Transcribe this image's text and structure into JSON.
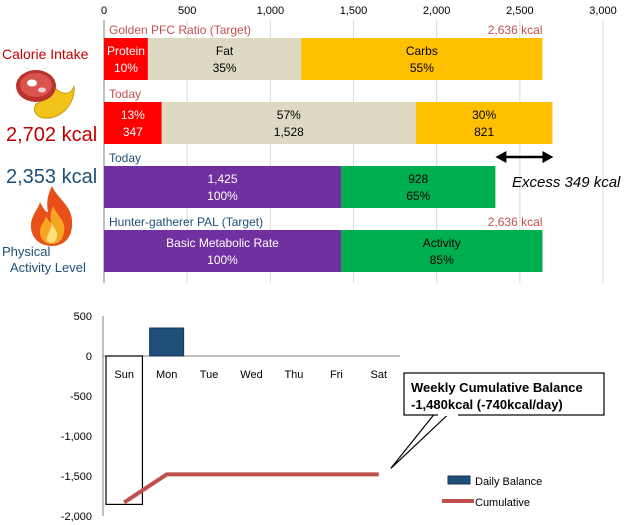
{
  "chart_data": [
    {
      "type": "bar",
      "orientation": "horizontal",
      "stacked": true,
      "xlim": [
        0,
        3000
      ],
      "xticks": [
        "0",
        "500",
        "1,000",
        "1,500",
        "2,000",
        "2,500",
        "3,000"
      ],
      "xtick_values": [
        0,
        500,
        1000,
        1500,
        2000,
        2500,
        3000
      ],
      "grid": true,
      "rows": [
        {
          "caption": "Golden PFC Ratio (Target)",
          "total_label": "2,636 kcal",
          "segments": [
            {
              "name": "Protein",
              "value": 264,
              "lines": [
                "Protein",
                "10%"
              ],
              "color": "#ff0000",
              "text_color": "#ffffff"
            },
            {
              "name": "Fat",
              "value": 922,
              "lines": [
                "Fat",
                "35%"
              ],
              "color": "#ddd9c3",
              "text_color": "#000000"
            },
            {
              "name": "Carbs",
              "value": 1450,
              "lines": [
                "Carbs",
                "55%"
              ],
              "color": "#ffc000",
              "text_color": "#000000"
            }
          ]
        },
        {
          "caption": "Today",
          "total_label": "",
          "segments": [
            {
              "name": "Protein",
              "value": 347,
              "lines": [
                "13%",
                "347"
              ],
              "color": "#ff0000",
              "text_color": "#ffffff"
            },
            {
              "name": "Fat",
              "value": 1528,
              "lines": [
                "57%",
                "1,528"
              ],
              "color": "#ddd9c3",
              "text_color": "#000000"
            },
            {
              "name": "Carbs",
              "value": 821,
              "lines": [
                "30%",
                "821"
              ],
              "color": "#ffc000",
              "text_color": "#000000"
            }
          ]
        },
        {
          "caption": "Today",
          "total_label": "",
          "segments": [
            {
              "name": "Basic Metabolic Rate",
              "value": 1425,
              "lines": [
                "1,425",
                "100%"
              ],
              "color": "#7030a0",
              "text_color": "#ffffff"
            },
            {
              "name": "Activity",
              "value": 928,
              "lines": [
                "928",
                "65%"
              ],
              "color": "#00b050",
              "text_color": "#000000"
            }
          ]
        },
        {
          "caption": "Hunter-gatherer  PAL (Target)",
          "total_label": "2,636 kcal",
          "segments": [
            {
              "name": "Basic Metabolic Rate",
              "value": 1425,
              "lines": [
                "Basic Metabolic Rate",
                "100%"
              ],
              "color": "#7030a0",
              "text_color": "#ffffff"
            },
            {
              "name": "Activity",
              "value": 1211,
              "lines": [
                "Activity",
                "85%"
              ],
              "color": "#00b050",
              "text_color": "#000000"
            }
          ]
        }
      ],
      "annotation": {
        "text": "Excess 349 kcal",
        "from": 2353,
        "to": 2702
      }
    },
    {
      "type": "bar+line",
      "categories": [
        "Sun",
        "Mon",
        "Tue",
        "Wed",
        "Thu",
        "Fri",
        "Sat"
      ],
      "ylim": [
        -2000,
        500
      ],
      "yticks": [
        "500",
        "0",
        "-500",
        "-1,000",
        "-1,500",
        "-2,000"
      ],
      "ytick_values": [
        500,
        0,
        -500,
        -1000,
        -1500,
        -2000
      ],
      "highlight_category": "Sun",
      "series": [
        {
          "name": "Daily Balance",
          "type": "bar",
          "color": "#1f4e79",
          "values": [
            -1830,
            350,
            null,
            null,
            null,
            null,
            null
          ]
        },
        {
          "name": "Cumulative",
          "type": "line",
          "color": "#c0504d",
          "values": [
            -1830,
            -1480,
            -1480,
            -1480,
            -1480,
            -1480,
            -1480
          ]
        }
      ],
      "callout": {
        "line1": "Weekly Cumulative Balance",
        "line2": "-1,480kcal (-740kcal/day)"
      }
    }
  ],
  "left_panel": {
    "intake_label": "Calorie Intake",
    "intake_value": "2,702 kcal",
    "burn_value": "2,353 kcal",
    "pal_line1": "Physical",
    "pal_line2": "Activity Level"
  },
  "icons": [
    "meat-banana-icon",
    "flame-icon"
  ]
}
